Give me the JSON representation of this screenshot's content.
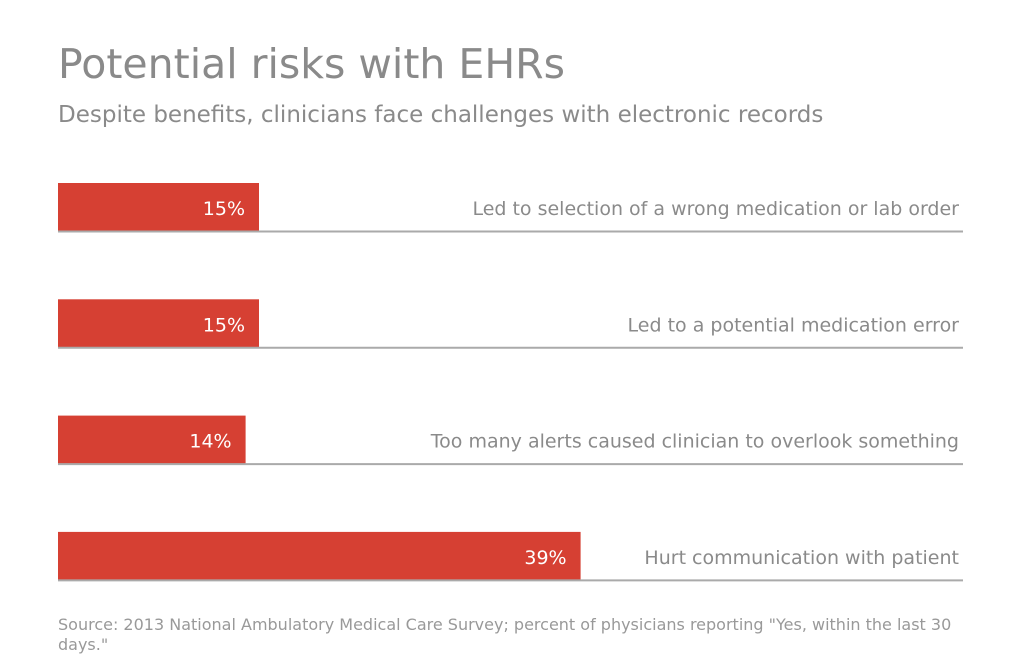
{
  "chart_data": {
    "type": "bar",
    "orientation": "horizontal",
    "title": "Potential risks with EHRs",
    "subtitle": "Despite benefits, clinicians face challenges with electronic records",
    "categories": [
      "Led to selection of a wrong medication or lab order",
      "Led to a potential medication error",
      "Too many alerts caused clinician to overlook something",
      "Hurt communication with patient"
    ],
    "values": [
      15,
      15,
      14,
      39
    ],
    "data_labels": [
      "15%",
      "15%",
      "14%",
      "39%"
    ],
    "unit": "%",
    "grid": false,
    "legend": "none",
    "colors": {
      "bar": "#d64033",
      "baseline": "#aaaaaa",
      "text": "#8a8a8a",
      "bar_label": "#ffffff"
    },
    "source": "Source: 2013 National Ambulatory Medical Care Survey; percent of physicians reporting \"Yes, within the last 30 days.\""
  }
}
